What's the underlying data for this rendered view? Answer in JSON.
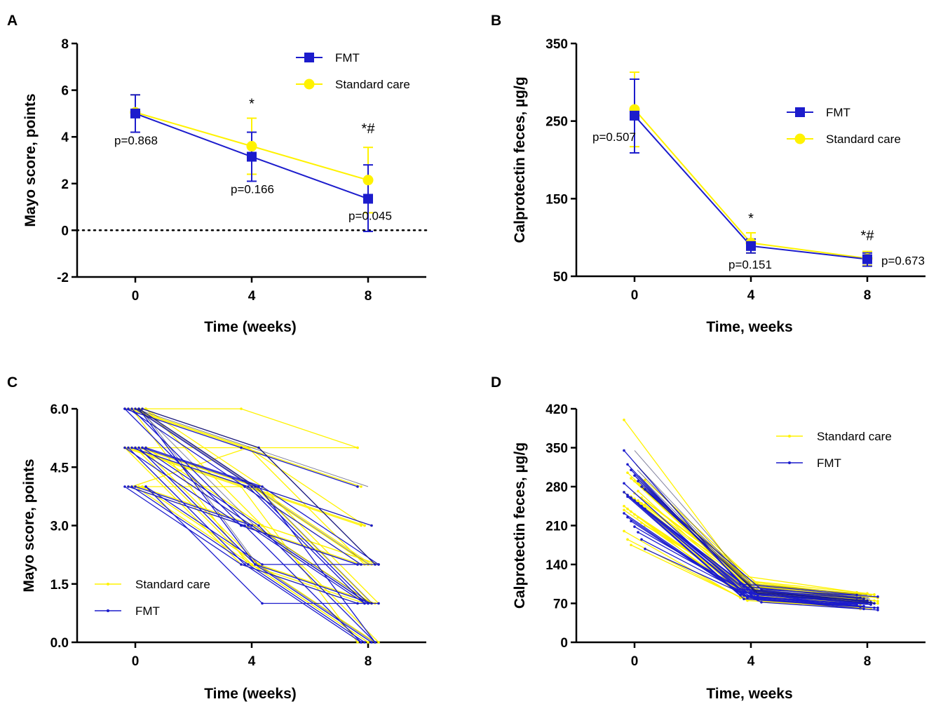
{
  "colors": {
    "fmt": "#1c1ccc",
    "standard": "#fff200",
    "standard_stroke": "#e6d800",
    "axis": "#000000",
    "dark_line": "#1a1a4a"
  },
  "chart_data": [
    {
      "panel": "A",
      "type": "line",
      "xlabel": "Time (weeks)",
      "ylabel": "Mayo score, points",
      "x": [
        0,
        4,
        8
      ],
      "xticks": [
        "0",
        "4",
        "8"
      ],
      "xlim": [
        -2,
        10
      ],
      "ylim": [
        -2,
        8
      ],
      "yticks": [
        "-2",
        "0",
        "2",
        "4",
        "6",
        "8"
      ],
      "reference_line_y": 0,
      "legend": [
        "FMT",
        "Standard care"
      ],
      "legend_position": "top-right",
      "series": [
        {
          "name": "FMT",
          "values": [
            5.0,
            3.15,
            1.35
          ],
          "err_low": [
            4.2,
            2.1,
            -0.05
          ],
          "err_high": [
            5.8,
            4.2,
            2.8
          ],
          "marker": "square"
        },
        {
          "name": "Standard care",
          "values": [
            5.05,
            3.6,
            2.15
          ],
          "err_low": [
            4.2,
            2.4,
            0.75
          ],
          "err_high": [
            5.8,
            4.8,
            3.55
          ],
          "marker": "circle"
        }
      ],
      "annotations": [
        {
          "text": "p=0.868",
          "x": 0
        },
        {
          "text": "p=0.166",
          "x": 4
        },
        {
          "text": "p=0.045",
          "x": 8
        },
        {
          "text": "*",
          "x": 4
        },
        {
          "text": "*#",
          "x": 8
        }
      ]
    },
    {
      "panel": "B",
      "type": "line",
      "xlabel": "Time, weeks",
      "ylabel": "Calprotectin feces, µg/g",
      "x": [
        0,
        4,
        8
      ],
      "xticks": [
        "0",
        "4",
        "8"
      ],
      "xlim": [
        -2,
        10
      ],
      "ylim": [
        50,
        350
      ],
      "yticks": [
        "50",
        "150",
        "250",
        "350"
      ],
      "legend": [
        "FMT",
        "Standard care"
      ],
      "legend_position": "center-right",
      "series": [
        {
          "name": "FMT",
          "values": [
            257,
            89,
            72
          ],
          "err_low": [
            209,
            80,
            63
          ],
          "err_high": [
            304,
            98,
            80
          ],
          "marker": "square"
        },
        {
          "name": "Standard care",
          "values": [
            265,
            93,
            73
          ],
          "err_low": [
            217,
            80,
            64
          ],
          "err_high": [
            313,
            106,
            82
          ],
          "marker": "circle"
        }
      ],
      "annotations": [
        {
          "text": "p=0.507",
          "x": 0
        },
        {
          "text": "p=0.151",
          "x": 4
        },
        {
          "text": "p=0.673",
          "x": 8
        },
        {
          "text": "*",
          "x": 4
        },
        {
          "text": "*#",
          "x": 8
        }
      ]
    },
    {
      "panel": "C",
      "type": "line",
      "xlabel": "Time (weeks)",
      "ylabel": "Mayo score, points",
      "x": [
        0,
        4,
        8
      ],
      "xticks": [
        "0",
        "4",
        "8"
      ],
      "xlim": [
        -2,
        10
      ],
      "ylim": [
        0,
        6
      ],
      "yticks": [
        "0.0",
        "1.5",
        "3.0",
        "4.5",
        "6.0"
      ],
      "legend": [
        "Standard care",
        "FMT"
      ],
      "legend_position": "bottom-left",
      "series": [
        {
          "name": "Standard care",
          "lines": [
            [
              6,
              6,
              5
            ],
            [
              6,
              5,
              4
            ],
            [
              6,
              5,
              3
            ],
            [
              6,
              4,
              2
            ],
            [
              6,
              4,
              3
            ],
            [
              6,
              5,
              2
            ],
            [
              6,
              4,
              1
            ],
            [
              5,
              5,
              5
            ],
            [
              5,
              4,
              2
            ],
            [
              5,
              4,
              3
            ],
            [
              5,
              3,
              1
            ],
            [
              5,
              4,
              1
            ],
            [
              5,
              2,
              0
            ],
            [
              5,
              3,
              2
            ],
            [
              5,
              2,
              1
            ],
            [
              4,
              4,
              3
            ],
            [
              4,
              5,
              2
            ],
            [
              4,
              2,
              0
            ],
            [
              4,
              3,
              1
            ],
            [
              4,
              2,
              1
            ],
            [
              6,
              3,
              2
            ],
            [
              5,
              4,
              0
            ],
            [
              4,
              3,
              2
            ],
            [
              6,
              2,
              1
            ],
            [
              5,
              2,
              0
            ],
            [
              6,
              4,
              2
            ],
            [
              4,
              2,
              1
            ],
            [
              5,
              3,
              0
            ]
          ]
        },
        {
          "name": "FMT",
          "lines": [
            [
              6,
              5,
              4
            ],
            [
              6,
              4,
              2
            ],
            [
              6,
              3,
              1
            ],
            [
              6,
              4,
              1
            ],
            [
              6,
              2,
              0
            ],
            [
              6,
              5,
              2
            ],
            [
              5,
              4,
              2
            ],
            [
              5,
              3,
              2
            ],
            [
              5,
              2,
              0
            ],
            [
              5,
              4,
              1
            ],
            [
              5,
              3,
              1
            ],
            [
              5,
              2,
              1
            ],
            [
              5,
              4,
              0
            ],
            [
              4,
              1,
              1
            ],
            [
              4,
              2,
              1
            ],
            [
              4,
              3,
              0
            ],
            [
              4,
              2,
              0
            ],
            [
              4,
              3,
              1
            ],
            [
              6,
              4,
              3
            ],
            [
              5,
              3,
              0
            ],
            [
              4,
              2,
              2
            ],
            [
              6,
              3,
              2
            ]
          ]
        }
      ]
    },
    {
      "panel": "D",
      "type": "line",
      "xlabel": "Time, weeks",
      "ylabel": "Calprotectin feces, µg/g",
      "x": [
        0,
        4,
        8
      ],
      "xticks": [
        "0",
        "4",
        "8"
      ],
      "xlim": [
        -2,
        10
      ],
      "ylim": [
        0,
        420
      ],
      "yticks": [
        "0",
        "70",
        "140",
        "210",
        "280",
        "350",
        "420"
      ],
      "legend": [
        "Standard care",
        "FMT"
      ],
      "legend_position": "top-right",
      "series": [
        {
          "name": "Standard care",
          "lines": [
            [
              400,
              120,
              90
            ],
            [
              305,
              110,
              85
            ],
            [
              295,
              100,
              80
            ],
            [
              290,
              95,
              75
            ],
            [
              285,
              105,
              85
            ],
            [
              280,
              90,
              70
            ],
            [
              275,
              100,
              80
            ],
            [
              270,
              95,
              78
            ],
            [
              265,
              85,
              70
            ],
            [
              262,
              92,
              75
            ],
            [
              258,
              88,
              72
            ],
            [
              255,
              95,
              68
            ],
            [
              250,
              100,
              82
            ],
            [
              248,
              90,
              70
            ],
            [
              245,
              85,
              65
            ],
            [
              240,
              80,
              66
            ],
            [
              235,
              95,
              78
            ],
            [
              230,
              88,
              72
            ],
            [
              225,
              82,
              68
            ],
            [
              215,
              90,
              75
            ],
            [
              210,
              85,
              70
            ],
            [
              200,
              80,
              65
            ],
            [
              185,
              78,
              60
            ],
            [
              175,
              75,
              62
            ],
            [
              268,
              110,
              88
            ],
            [
              272,
              80,
              60
            ],
            [
              260,
              102,
              86
            ],
            [
              292,
              98,
              74
            ],
            [
              238,
              92,
              64
            ]
          ]
        },
        {
          "name": "FMT",
          "lines": [
            [
              345,
              105,
              85
            ],
            [
              320,
              100,
              80
            ],
            [
              310,
              95,
              78
            ],
            [
              300,
              90,
              75
            ],
            [
              290,
              92,
              72
            ],
            [
              280,
              88,
              70
            ],
            [
              275,
              95,
              82
            ],
            [
              270,
              85,
              68
            ],
            [
              265,
              90,
              70
            ],
            [
              260,
              82,
              65
            ],
            [
              255,
              88,
              74
            ],
            [
              250,
              80,
              68
            ],
            [
              245,
              85,
              70
            ],
            [
              240,
              78,
              62
            ],
            [
              232,
              90,
              66
            ],
            [
              225,
              84,
              64
            ],
            [
              218,
              80,
              60
            ],
            [
              208,
              86,
              70
            ],
            [
              198,
              82,
              68
            ],
            [
              185,
              76,
              62
            ],
            [
              168,
              72,
              58
            ],
            [
              286,
              96,
              76
            ],
            [
              262,
              78,
              64
            ]
          ]
        }
      ]
    }
  ]
}
